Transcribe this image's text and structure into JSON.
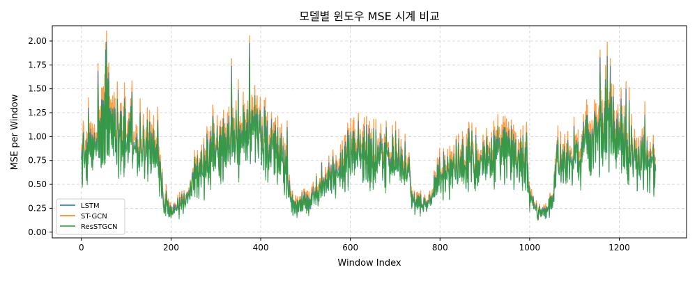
{
  "chart_data": {
    "type": "line",
    "title": "모델별 윈도우 MSE 시계 비교",
    "xlabel": "Window Index",
    "ylabel": "MSE per Window",
    "xlim": [
      -65,
      1350
    ],
    "ylim": [
      -0.06,
      2.16
    ],
    "xticks": [
      0,
      200,
      400,
      600,
      800,
      1000,
      1200
    ],
    "xtick_labels": [
      "0",
      "200",
      "400",
      "600",
      "800",
      "1000",
      "1200"
    ],
    "yticks": [
      0,
      0.25,
      0.5,
      0.75,
      1.0,
      1.25,
      1.5,
      1.75,
      2.0
    ],
    "ytick_labels": [
      "0.00",
      "0.25",
      "0.50",
      "0.75",
      "1.00",
      "1.25",
      "1.50",
      "1.75",
      "2.00"
    ],
    "grid": true,
    "legend_position": "lower-left",
    "x_count": 1282,
    "trend_anchor_x": [
      0,
      30,
      60,
      100,
      150,
      175,
      185,
      200,
      230,
      260,
      300,
      340,
      370,
      400,
      430,
      455,
      470,
      500,
      540,
      580,
      600,
      650,
      700,
      725,
      740,
      760,
      780,
      800,
      850,
      900,
      950,
      990,
      1005,
      1020,
      1050,
      1060,
      1100,
      1150,
      1170,
      1200,
      1230,
      1260,
      1282
    ],
    "trend_anchor_y": [
      0.75,
      0.9,
      1.2,
      1.0,
      0.9,
      0.75,
      0.3,
      0.25,
      0.3,
      0.6,
      0.85,
      0.95,
      1.05,
      1.0,
      0.85,
      0.7,
      0.3,
      0.3,
      0.55,
      0.65,
      0.85,
      0.8,
      0.75,
      0.7,
      0.35,
      0.3,
      0.35,
      0.6,
      0.75,
      0.8,
      0.85,
      0.75,
      0.35,
      0.2,
      0.3,
      0.7,
      0.8,
      1.05,
      1.15,
      1.05,
      0.8,
      0.75,
      0.7
    ],
    "spike_peaks": [
      {
        "x": 37,
        "y": 1.77
      },
      {
        "x": 54,
        "y": 1.99
      },
      {
        "x": 335,
        "y": 1.82
      },
      {
        "x": 375,
        "y": 2.06
      },
      {
        "x": 1157,
        "y": 1.91
      },
      {
        "x": 1180,
        "y": 1.82
      },
      {
        "x": 1215,
        "y": 1.58
      }
    ],
    "series": [
      {
        "name": "LSTM",
        "color": "#1f77b4",
        "scale": 0.97
      },
      {
        "name": "ST-GCN",
        "color": "#ff7f0e",
        "scale": 1.06
      },
      {
        "name": "ResSTGCN",
        "color": "#2ca02c",
        "scale": 0.94
      }
    ]
  }
}
